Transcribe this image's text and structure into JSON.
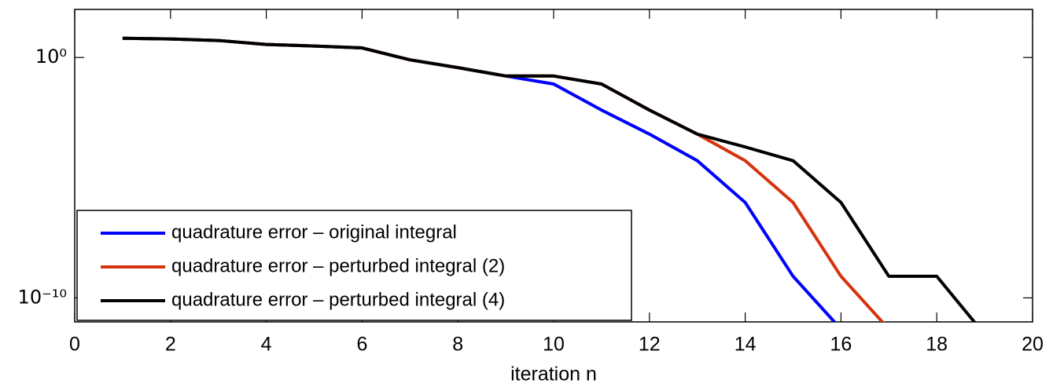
{
  "chart_data": {
    "type": "line",
    "xlabel": "iteration n",
    "x": [
      1,
      2,
      3,
      4,
      5,
      6,
      7,
      8,
      9,
      10,
      11,
      12,
      13,
      14,
      15,
      16,
      17,
      18,
      19
    ],
    "series": [
      {
        "name": "quadrature error – original integral",
        "color": "#0000ff",
        "values": [
          6.3,
          5.9,
          5.1,
          3.5,
          3.0,
          2.5,
          0.8,
          0.38,
          0.17,
          0.079,
          0.0065,
          0.00065,
          5.1e-05,
          9.3e-07,
          7.9e-10,
          5e-12,
          null,
          null,
          null
        ]
      },
      {
        "name": "quadrature error – perturbed integral (2)",
        "color": "#d6330f",
        "values": [
          6.3,
          5.9,
          5.1,
          3.5,
          3.0,
          2.5,
          0.8,
          0.38,
          0.17,
          0.17,
          0.079,
          0.0065,
          0.00065,
          5.1e-05,
          9.3e-07,
          7.9e-10,
          5e-12,
          null,
          null
        ]
      },
      {
        "name": "quadrature error – perturbed integral (4)",
        "color": "#000000",
        "values": [
          6.3,
          5.9,
          5.1,
          3.5,
          3.0,
          2.5,
          0.8,
          0.38,
          0.17,
          0.17,
          0.079,
          0.0065,
          0.00065,
          0.00019,
          5.1e-05,
          9.3e-07,
          7.9e-10,
          7.9e-10,
          3e-12
        ]
      }
    ],
    "xlim": [
      0,
      20
    ],
    "xticks": [
      0,
      2,
      4,
      6,
      8,
      10,
      12,
      14,
      16,
      18,
      20
    ],
    "ylim": [
      1e-11,
      100
    ],
    "yscale": "log",
    "yticks": [
      {
        "value": 1e-10,
        "label": "10⁻¹⁰"
      },
      {
        "value": 1,
        "label": "10⁰"
      }
    ],
    "legend": "lower left"
  }
}
